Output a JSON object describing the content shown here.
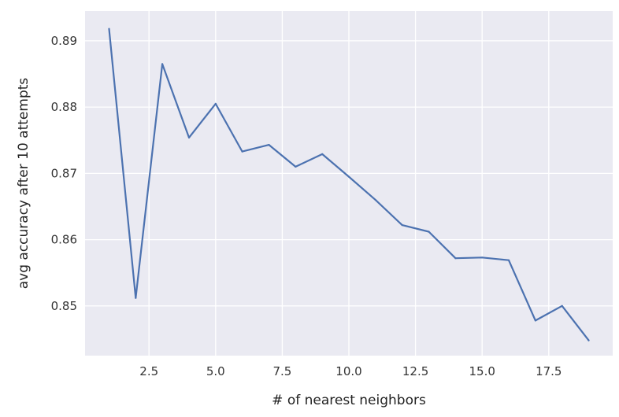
{
  "chart_data": {
    "type": "line",
    "title": "",
    "xlabel": "# of nearest neighbors",
    "ylabel": "avg accuracy after 10 attempts",
    "xlim": [
      0.1,
      19.9
    ],
    "ylim": [
      0.8425,
      0.8945
    ],
    "xticks": [
      2.5,
      5.0,
      7.5,
      10.0,
      12.5,
      15.0,
      17.5
    ],
    "xtick_labels": [
      "2.5",
      "5.0",
      "7.5",
      "10.0",
      "12.5",
      "15.0",
      "17.5"
    ],
    "yticks": [
      0.85,
      0.86,
      0.87,
      0.88,
      0.89
    ],
    "ytick_labels": [
      "0.85",
      "0.86",
      "0.87",
      "0.88",
      "0.89"
    ],
    "grid": true,
    "colors": {
      "background": "#eaeaf2",
      "grid": "#ffffff",
      "line": "#4c72b0"
    },
    "series": [
      {
        "x": [
          1,
          2,
          3,
          4,
          5,
          6,
          7,
          8,
          9,
          10,
          11,
          12,
          13,
          14,
          15,
          16,
          17,
          18,
          19
        ],
        "values": [
          0.8918,
          0.8512,
          0.8865,
          0.8754,
          0.8805,
          0.8733,
          0.8743,
          0.871,
          0.8729,
          0.8695,
          0.866,
          0.8622,
          0.8612,
          0.8572,
          0.8573,
          0.8569,
          0.8478,
          0.85,
          0.8448
        ]
      }
    ]
  }
}
